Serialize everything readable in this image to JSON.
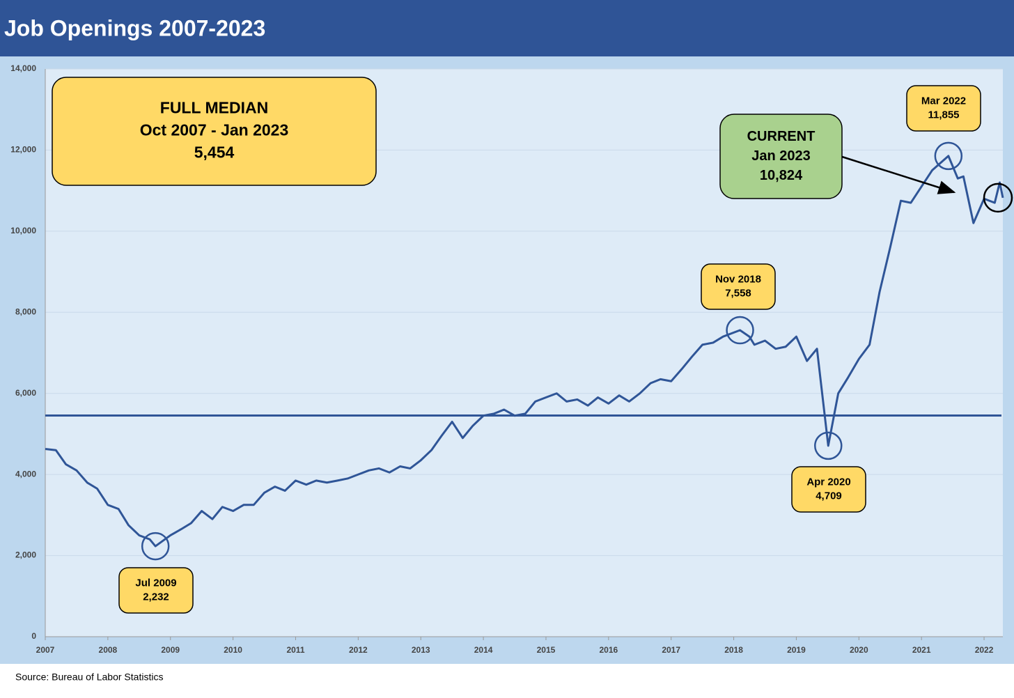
{
  "chart_data": {
    "type": "line",
    "title": "Job Openings 2007-2023",
    "source": "Source: Bureau of Labor Statistics",
    "x": [
      2007,
      2007.17,
      2007.33,
      2007.5,
      2007.67,
      2007.83,
      2008,
      2008.17,
      2008.33,
      2008.5,
      2008.67,
      2008.76,
      2009,
      2009.17,
      2009.33,
      2009.5,
      2009.67,
      2009.83,
      2010,
      2010.17,
      2010.33,
      2010.5,
      2010.67,
      2010.83,
      2011,
      2011.17,
      2011.33,
      2011.5,
      2011.67,
      2011.83,
      2012,
      2012.17,
      2012.33,
      2012.5,
      2012.67,
      2012.83,
      2013,
      2013.17,
      2013.33,
      2013.5,
      2013.67,
      2013.83,
      2014,
      2014.17,
      2014.33,
      2014.5,
      2014.67,
      2014.83,
      2015,
      2015.17,
      2015.33,
      2015.5,
      2015.67,
      2015.83,
      2016,
      2016.17,
      2016.33,
      2016.5,
      2016.67,
      2016.83,
      2017,
      2017.17,
      2017.33,
      2017.5,
      2017.67,
      2017.83,
      2018.1,
      2018.25,
      2018.33,
      2018.5,
      2018.67,
      2018.83,
      2019,
      2019.17,
      2019.33,
      2019.51,
      2019.67,
      2019.83,
      2020,
      2020.17,
      2020.33,
      2020.5,
      2020.67,
      2020.83,
      2021,
      2021.17,
      2021.43,
      2021.58,
      2021.67,
      2021.83,
      2022,
      2022.17,
      2022.25,
      2022.3
    ],
    "series": [
      {
        "name": "Job Openings",
        "color": "#2f5597",
        "values": [
          4630,
          4600,
          4250,
          4100,
          3800,
          3650,
          3250,
          3150,
          2750,
          2500,
          2400,
          2232,
          2500,
          2650,
          2800,
          3100,
          2900,
          3200,
          3100,
          3250,
          3250,
          3550,
          3700,
          3600,
          3850,
          3750,
          3850,
          3800,
          3850,
          3900,
          4000,
          4100,
          4150,
          4050,
          4200,
          4150,
          4350,
          4600,
          4950,
          5300,
          4900,
          5200,
          5450,
          5500,
          5600,
          5450,
          5500,
          5800,
          5900,
          6000,
          5800,
          5850,
          5700,
          5900,
          5750,
          5950,
          5800,
          6000,
          6250,
          6350,
          6300,
          6600,
          6900,
          7200,
          7250,
          7400,
          7558,
          7400,
          7200,
          7300,
          7100,
          7150,
          7400,
          6800,
          7100,
          4709,
          6000,
          6400,
          6850,
          7200,
          8500,
          9600,
          10750,
          10700,
          11100,
          11500,
          11855,
          11300,
          11350,
          10200,
          10800,
          10700,
          11200,
          10824
        ]
      }
    ],
    "xlim": [
      2007,
      2022.3
    ],
    "xticks": [
      2007,
      2008,
      2009,
      2010,
      2011,
      2012,
      2013,
      2014,
      2015,
      2016,
      2017,
      2018,
      2019,
      2020,
      2021,
      2022
    ],
    "ylim": [
      0,
      14000
    ],
    "yticks": [
      0,
      {
        "value": 2000,
        "label": "2,000"
      },
      {
        "value": 4000,
        "label": "4,000"
      },
      {
        "value": 6000,
        "label": "6,000"
      },
      {
        "value": 8000,
        "label": "8,000"
      },
      {
        "value": 10000,
        "label": "10,000"
      },
      {
        "value": 12000,
        "label": "12,000"
      },
      {
        "value": 14000,
        "label": "14,000"
      }
    ],
    "grid": true,
    "median": {
      "value": 5454,
      "color": "#2f5597",
      "lines": [
        "FULL MEDIAN",
        "Oct 2007 - Jan 2023",
        "5,454"
      ]
    },
    "current": {
      "value": 10824,
      "lines": [
        "CURRENT",
        "Jan 2023",
        "10,824"
      ]
    },
    "callouts": [
      {
        "lines": [
          "Jul 2009",
          "2,232"
        ],
        "value": 2232
      },
      {
        "lines": [
          "Nov 2018",
          "7,558"
        ],
        "value": 7558
      },
      {
        "lines": [
          "Apr 2020",
          "4,709"
        ],
        "value": 4709
      },
      {
        "lines": [
          "Mar 2022",
          "11,855"
        ],
        "value": 11855
      }
    ]
  }
}
